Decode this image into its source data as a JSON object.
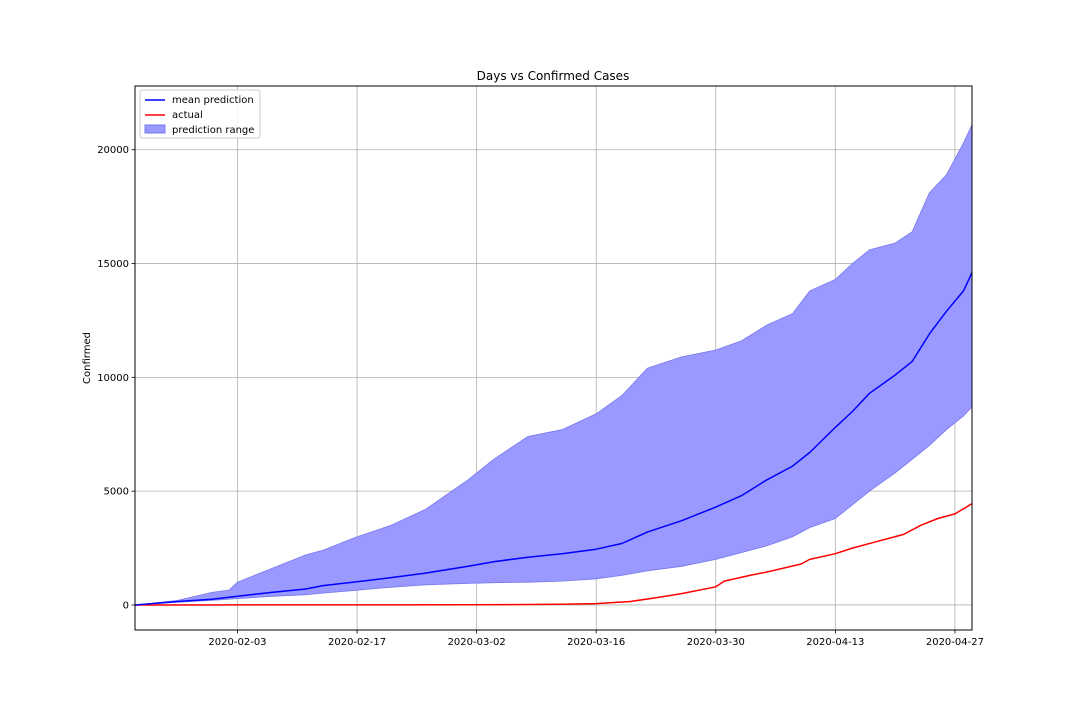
{
  "chart_data": {
    "type": "line",
    "title": "Days vs Confirmed Cases",
    "xlabel": "",
    "ylabel": "Confirmed",
    "x_start": "2020-01-22",
    "x_end": "2020-04-29",
    "xlim": [
      "2020-01-22",
      "2020-04-29"
    ],
    "ylim": [
      -1100,
      22800
    ],
    "x_ticks": [
      "2020-02-03",
      "2020-02-17",
      "2020-03-02",
      "2020-03-16",
      "2020-03-30",
      "2020-04-13",
      "2020-04-27"
    ],
    "y_ticks": [
      0,
      5000,
      10000,
      15000,
      20000
    ],
    "y_tick_labels": [
      "0",
      "5000",
      "10000",
      "15000",
      "20000"
    ],
    "grid": true,
    "legend_position": "top-left",
    "colors": {
      "mean": "#0000ff",
      "actual": "#ff0000",
      "range_fill": "#9999ff",
      "range_edge": "#7777ee"
    },
    "series": [
      {
        "name": "mean prediction",
        "kind": "line",
        "points": [
          [
            "2020-01-22",
            0
          ],
          [
            "2020-01-27",
            150
          ],
          [
            "2020-01-31",
            250
          ],
          [
            "2020-02-03",
            380
          ],
          [
            "2020-02-07",
            550
          ],
          [
            "2020-02-11",
            700
          ],
          [
            "2020-02-13",
            850
          ],
          [
            "2020-02-17",
            1020
          ],
          [
            "2020-02-21",
            1200
          ],
          [
            "2020-02-25",
            1400
          ],
          [
            "2020-03-01",
            1700
          ],
          [
            "2020-03-04",
            1900
          ],
          [
            "2020-03-08",
            2100
          ],
          [
            "2020-03-12",
            2250
          ],
          [
            "2020-03-16",
            2450
          ],
          [
            "2020-03-19",
            2700
          ],
          [
            "2020-03-22",
            3200
          ],
          [
            "2020-03-26",
            3700
          ],
          [
            "2020-03-30",
            4300
          ],
          [
            "2020-04-02",
            4800
          ],
          [
            "2020-04-05",
            5500
          ],
          [
            "2020-04-08",
            6100
          ],
          [
            "2020-04-10",
            6700
          ],
          [
            "2020-04-13",
            7800
          ],
          [
            "2020-04-15",
            8500
          ],
          [
            "2020-04-17",
            9300
          ],
          [
            "2020-04-20",
            10100
          ],
          [
            "2020-04-22",
            10700
          ],
          [
            "2020-04-24",
            11900
          ],
          [
            "2020-04-26",
            12900
          ],
          [
            "2020-04-28",
            13800
          ],
          [
            "2020-04-29",
            14600
          ]
        ]
      },
      {
        "name": "actual",
        "kind": "line",
        "points": [
          [
            "2020-01-22",
            0
          ],
          [
            "2020-03-01",
            5
          ],
          [
            "2020-03-12",
            30
          ],
          [
            "2020-03-16",
            60
          ],
          [
            "2020-03-20",
            150
          ],
          [
            "2020-03-23",
            320
          ],
          [
            "2020-03-26",
            500
          ],
          [
            "2020-03-30",
            800
          ],
          [
            "2020-03-31",
            1050
          ],
          [
            "2020-04-03",
            1300
          ],
          [
            "2020-04-05",
            1450
          ],
          [
            "2020-04-09",
            1800
          ],
          [
            "2020-04-10",
            2000
          ],
          [
            "2020-04-13",
            2250
          ],
          [
            "2020-04-15",
            2500
          ],
          [
            "2020-04-18",
            2800
          ],
          [
            "2020-04-21",
            3100
          ],
          [
            "2020-04-23",
            3500
          ],
          [
            "2020-04-25",
            3800
          ],
          [
            "2020-04-27",
            4000
          ],
          [
            "2020-04-29",
            4450
          ]
        ]
      },
      {
        "name": "prediction range",
        "kind": "band",
        "upper": [
          [
            "2020-01-22",
            0
          ],
          [
            "2020-01-27",
            200
          ],
          [
            "2020-01-31",
            550
          ],
          [
            "2020-02-02",
            650
          ],
          [
            "2020-02-03",
            1000
          ],
          [
            "2020-02-07",
            1600
          ],
          [
            "2020-02-11",
            2200
          ],
          [
            "2020-02-13",
            2400
          ],
          [
            "2020-02-17",
            3000
          ],
          [
            "2020-02-21",
            3500
          ],
          [
            "2020-02-25",
            4200
          ],
          [
            "2020-03-01",
            5500
          ],
          [
            "2020-03-04",
            6400
          ],
          [
            "2020-03-08",
            7400
          ],
          [
            "2020-03-12",
            7700
          ],
          [
            "2020-03-16",
            8400
          ],
          [
            "2020-03-19",
            9200
          ],
          [
            "2020-03-22",
            10400
          ],
          [
            "2020-03-26",
            10900
          ],
          [
            "2020-03-30",
            11200
          ],
          [
            "2020-04-02",
            11600
          ],
          [
            "2020-04-05",
            12300
          ],
          [
            "2020-04-08",
            12800
          ],
          [
            "2020-04-10",
            13800
          ],
          [
            "2020-04-13",
            14300
          ],
          [
            "2020-04-15",
            15000
          ],
          [
            "2020-04-17",
            15600
          ],
          [
            "2020-04-20",
            15900
          ],
          [
            "2020-04-22",
            16400
          ],
          [
            "2020-04-24",
            18100
          ],
          [
            "2020-04-26",
            18900
          ],
          [
            "2020-04-28",
            20300
          ],
          [
            "2020-04-29",
            21100
          ]
        ],
        "lower": [
          [
            "2020-01-22",
            0
          ],
          [
            "2020-01-27",
            120
          ],
          [
            "2020-01-31",
            200
          ],
          [
            "2020-02-03",
            280
          ],
          [
            "2020-02-07",
            380
          ],
          [
            "2020-02-11",
            450
          ],
          [
            "2020-02-13",
            520
          ],
          [
            "2020-02-17",
            650
          ],
          [
            "2020-02-21",
            780
          ],
          [
            "2020-02-25",
            880
          ],
          [
            "2020-03-01",
            950
          ],
          [
            "2020-03-04",
            980
          ],
          [
            "2020-03-08",
            1000
          ],
          [
            "2020-03-12",
            1050
          ],
          [
            "2020-03-16",
            1150
          ],
          [
            "2020-03-19",
            1300
          ],
          [
            "2020-03-22",
            1500
          ],
          [
            "2020-03-26",
            1700
          ],
          [
            "2020-03-30",
            2000
          ],
          [
            "2020-04-02",
            2300
          ],
          [
            "2020-04-05",
            2600
          ],
          [
            "2020-04-08",
            3000
          ],
          [
            "2020-04-10",
            3400
          ],
          [
            "2020-04-13",
            3800
          ],
          [
            "2020-04-15",
            4400
          ],
          [
            "2020-04-17",
            5000
          ],
          [
            "2020-04-20",
            5800
          ],
          [
            "2020-04-22",
            6400
          ],
          [
            "2020-04-24",
            7000
          ],
          [
            "2020-04-26",
            7700
          ],
          [
            "2020-04-28",
            8300
          ],
          [
            "2020-04-29",
            8700
          ]
        ]
      }
    ]
  }
}
